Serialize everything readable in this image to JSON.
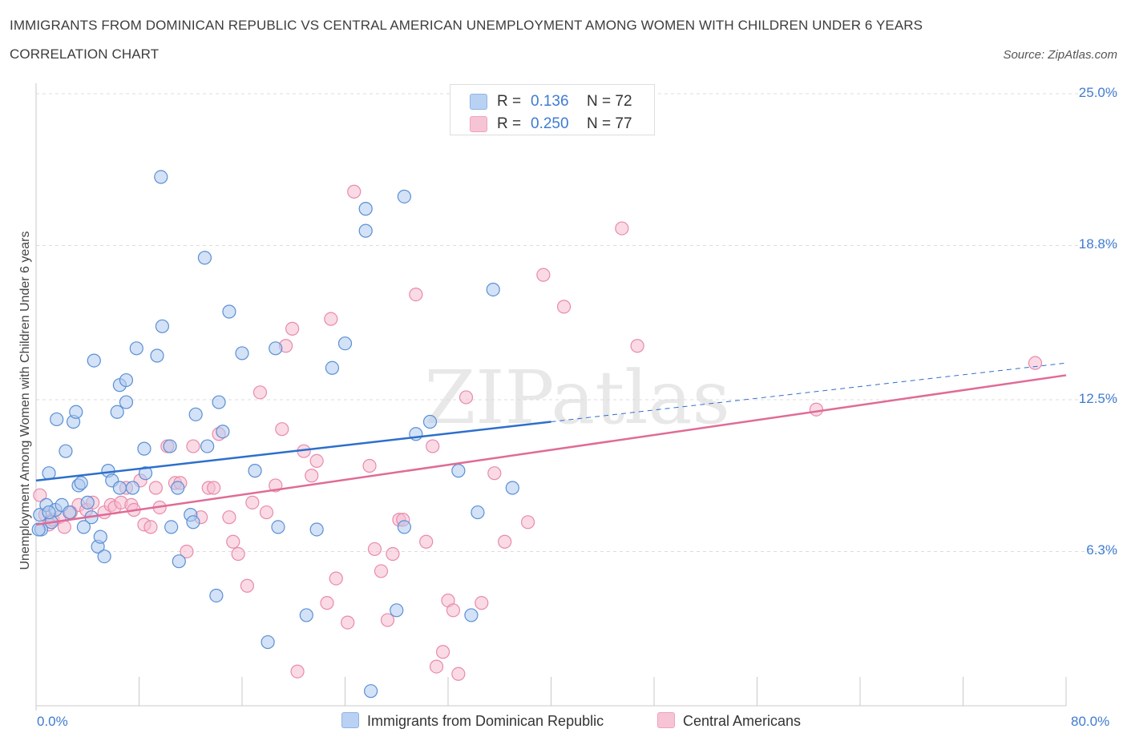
{
  "header": {
    "title": "IMMIGRANTS FROM DOMINICAN REPUBLIC VS CENTRAL AMERICAN UNEMPLOYMENT AMONG WOMEN WITH CHILDREN UNDER 6 YEARS CORRELATION CHART",
    "source": "Source: ZipAtlas.com"
  },
  "watermark": "ZIPatlas",
  "colors": {
    "blue_fill": "#aecbef",
    "blue_stroke": "#5a8fd6",
    "blue_line": "#2d6fcc",
    "pink_fill": "#f5bcd0",
    "pink_stroke": "#e98aab",
    "pink_line": "#e06b96",
    "tick_text": "#3f7bd1",
    "grid": "#dcdcdc"
  },
  "legend": {
    "series": [
      {
        "r_label": "R =",
        "r_value": "0.136",
        "n_label": "N = 72",
        "swatch": "#aecbef"
      },
      {
        "r_label": "R =",
        "r_value": "0.250",
        "n_label": "N = 77",
        "swatch": "#f5bcd0"
      }
    ],
    "bottom": [
      {
        "label": "Immigrants from Dominican Republic",
        "swatch": "#aecbef"
      },
      {
        "label": "Central Americans",
        "swatch": "#f5bcd0"
      }
    ]
  },
  "chart_data": {
    "type": "scatter",
    "title": "IMMIGRANTS FROM DOMINICAN REPUBLIC VS CENTRAL AMERICAN UNEMPLOYMENT AMONG WOMEN WITH CHILDREN UNDER 6 YEARS CORRELATION CHART",
    "xlabel": "",
    "ylabel": "Unemployment Among Women with Children Under 6 years",
    "xlim": [
      0,
      80
    ],
    "ylim": [
      0,
      25
    ],
    "x_tick_labels": [
      "0.0%",
      "80.0%"
    ],
    "y_ticks": [
      6.3,
      12.5,
      18.8,
      25.0
    ],
    "y_tick_labels": [
      "6.3%",
      "12.5%",
      "18.8%",
      "25.0%"
    ],
    "grid": "horizontal dashed",
    "legend_position": "top-center",
    "series": [
      {
        "name": "Immigrants from Dominican Republic",
        "color": "#aecbef",
        "R": 0.136,
        "N": 72,
        "trend": {
          "x": [
            0,
            40
          ],
          "y": [
            9.2,
            11.6
          ],
          "extended_x": [
            40,
            80
          ],
          "extended_y": [
            11.6,
            14.0
          ]
        },
        "points": [
          [
            0.3,
            7.8
          ],
          [
            0.8,
            8.2
          ],
          [
            1.2,
            7.5
          ],
          [
            1.5,
            8.0
          ],
          [
            2.0,
            8.2
          ],
          [
            0.4,
            7.2
          ],
          [
            1.0,
            7.9
          ],
          [
            2.6,
            7.9
          ],
          [
            1.0,
            9.5
          ],
          [
            1.6,
            11.7
          ],
          [
            3.3,
            9.0
          ],
          [
            3.5,
            9.1
          ],
          [
            4.0,
            8.3
          ],
          [
            4.3,
            7.7
          ],
          [
            4.8,
            6.5
          ],
          [
            5.0,
            6.9
          ],
          [
            5.3,
            6.1
          ],
          [
            3.7,
            7.3
          ],
          [
            2.3,
            10.4
          ],
          [
            2.9,
            11.6
          ],
          [
            3.1,
            12.0
          ],
          [
            4.5,
            14.1
          ],
          [
            5.6,
            9.6
          ],
          [
            5.9,
            9.2
          ],
          [
            6.3,
            12.0
          ],
          [
            6.5,
            13.1
          ],
          [
            7.0,
            13.3
          ],
          [
            7.0,
            12.4
          ],
          [
            6.5,
            8.9
          ],
          [
            7.5,
            8.9
          ],
          [
            8.5,
            9.5
          ],
          [
            8.4,
            10.5
          ],
          [
            7.8,
            14.6
          ],
          [
            9.4,
            14.3
          ],
          [
            9.8,
            15.5
          ],
          [
            9.7,
            21.6
          ],
          [
            10.4,
            10.6
          ],
          [
            10.5,
            7.3
          ],
          [
            11.0,
            8.9
          ],
          [
            11.1,
            5.9
          ],
          [
            12.0,
            7.8
          ],
          [
            12.2,
            7.5
          ],
          [
            12.4,
            11.9
          ],
          [
            13.1,
            18.3
          ],
          [
            13.3,
            10.6
          ],
          [
            14.0,
            4.5
          ],
          [
            14.2,
            12.4
          ],
          [
            14.5,
            11.2
          ],
          [
            15.0,
            16.1
          ],
          [
            16.0,
            14.4
          ],
          [
            17.0,
            9.6
          ],
          [
            18.0,
            2.6
          ],
          [
            18.6,
            14.6
          ],
          [
            18.8,
            7.3
          ],
          [
            21.0,
            3.7
          ],
          [
            21.8,
            7.2
          ],
          [
            23.0,
            13.8
          ],
          [
            24.0,
            14.8
          ],
          [
            25.6,
            19.4
          ],
          [
            26.0,
            0.6
          ],
          [
            25.6,
            20.3
          ],
          [
            28.6,
            20.8
          ],
          [
            28.0,
            3.9
          ],
          [
            28.6,
            7.3
          ],
          [
            29.5,
            11.1
          ],
          [
            30.6,
            11.6
          ],
          [
            32.8,
            9.6
          ],
          [
            33.8,
            3.7
          ],
          [
            34.3,
            7.9
          ],
          [
            35.5,
            17.0
          ],
          [
            37.0,
            8.9
          ],
          [
            0.2,
            7.2
          ]
        ]
      },
      {
        "name": "Central Americans",
        "color": "#f5bcd0",
        "R": 0.25,
        "N": 77,
        "trend": {
          "x": [
            0,
            80
          ],
          "y": [
            7.4,
            13.5
          ]
        },
        "points": [
          [
            0.3,
            8.6
          ],
          [
            0.7,
            7.8
          ],
          [
            1.0,
            7.4
          ],
          [
            1.3,
            7.6
          ],
          [
            1.8,
            7.7
          ],
          [
            2.2,
            7.3
          ],
          [
            2.7,
            7.9
          ],
          [
            3.3,
            8.2
          ],
          [
            3.9,
            8.0
          ],
          [
            4.4,
            8.3
          ],
          [
            5.3,
            7.9
          ],
          [
            5.8,
            8.2
          ],
          [
            6.1,
            8.1
          ],
          [
            6.6,
            8.3
          ],
          [
            7.0,
            8.9
          ],
          [
            7.4,
            8.2
          ],
          [
            7.6,
            8.0
          ],
          [
            8.1,
            9.2
          ],
          [
            8.4,
            7.4
          ],
          [
            8.9,
            7.3
          ],
          [
            9.3,
            8.9
          ],
          [
            9.6,
            8.1
          ],
          [
            10.2,
            10.6
          ],
          [
            10.8,
            9.1
          ],
          [
            11.2,
            9.1
          ],
          [
            11.7,
            6.3
          ],
          [
            12.2,
            10.6
          ],
          [
            12.8,
            7.7
          ],
          [
            13.4,
            8.9
          ],
          [
            13.8,
            8.9
          ],
          [
            14.2,
            11.1
          ],
          [
            15.0,
            7.7
          ],
          [
            15.3,
            6.7
          ],
          [
            15.7,
            6.2
          ],
          [
            16.4,
            4.9
          ],
          [
            16.8,
            8.3
          ],
          [
            17.4,
            12.8
          ],
          [
            17.9,
            7.9
          ],
          [
            18.6,
            9.0
          ],
          [
            19.1,
            11.3
          ],
          [
            19.4,
            14.7
          ],
          [
            19.9,
            15.4
          ],
          [
            20.3,
            1.4
          ],
          [
            20.8,
            10.4
          ],
          [
            21.4,
            9.4
          ],
          [
            21.8,
            10.0
          ],
          [
            22.6,
            4.2
          ],
          [
            22.9,
            15.8
          ],
          [
            23.3,
            5.2
          ],
          [
            24.2,
            3.4
          ],
          [
            24.7,
            21.0
          ],
          [
            25.9,
            9.8
          ],
          [
            26.3,
            6.4
          ],
          [
            26.8,
            5.5
          ],
          [
            27.3,
            3.5
          ],
          [
            27.7,
            6.2
          ],
          [
            28.2,
            7.6
          ],
          [
            28.5,
            7.6
          ],
          [
            29.5,
            16.8
          ],
          [
            30.3,
            6.7
          ],
          [
            30.8,
            10.6
          ],
          [
            31.1,
            1.6
          ],
          [
            31.6,
            2.2
          ],
          [
            32.0,
            4.3
          ],
          [
            32.4,
            3.9
          ],
          [
            32.8,
            1.3
          ],
          [
            33.4,
            12.6
          ],
          [
            34.6,
            4.2
          ],
          [
            35.6,
            9.5
          ],
          [
            36.4,
            6.7
          ],
          [
            38.2,
            7.5
          ],
          [
            39.4,
            17.6
          ],
          [
            41.0,
            16.3
          ],
          [
            45.5,
            19.5
          ],
          [
            46.7,
            14.7
          ],
          [
            60.6,
            12.1
          ],
          [
            77.6,
            14.0
          ]
        ]
      }
    ]
  }
}
